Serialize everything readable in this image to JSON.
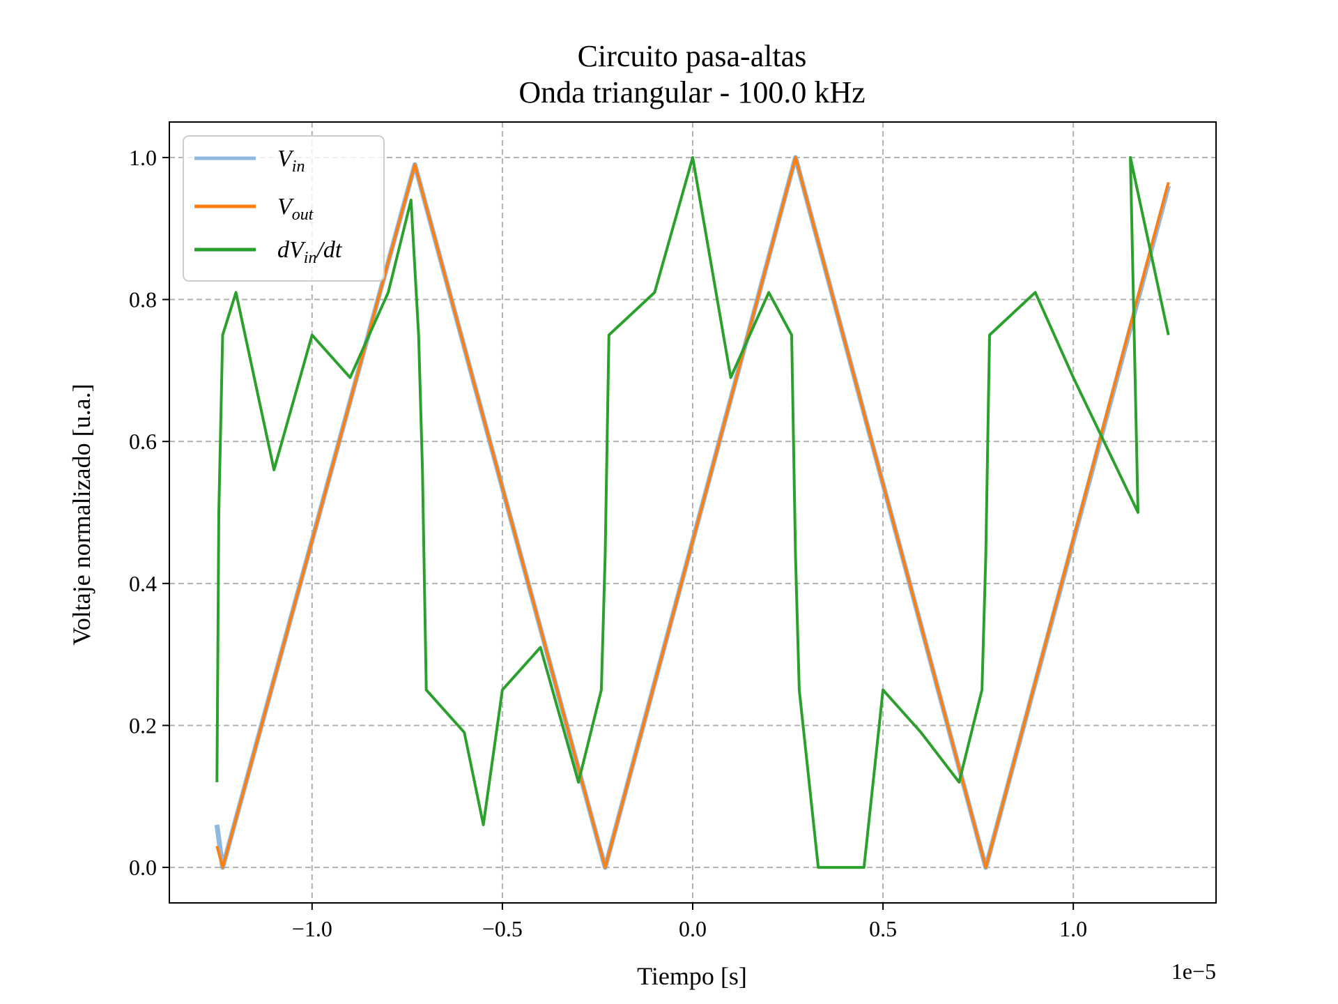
{
  "chart_data": {
    "type": "line",
    "title": "Circuito pasa-altas",
    "subtitle": "Onda triangular - 100.0 kHz",
    "xlabel": "Tiempo [s]",
    "ylabel": "Voltaje normalizado [u.a.]",
    "x_offset_label": "1e−5",
    "xlim": [
      -1.375,
      1.375
    ],
    "ylim": [
      -0.05,
      1.05
    ],
    "x_ticks": [
      -1.0,
      -0.5,
      0.0,
      0.5,
      1.0
    ],
    "x_tick_labels": [
      "−1.0",
      "−0.5",
      "0.0",
      "0.5",
      "1.0"
    ],
    "y_ticks": [
      0.0,
      0.2,
      0.4,
      0.6,
      0.8,
      1.0
    ],
    "y_tick_labels": [
      "0.0",
      "0.2",
      "0.4",
      "0.6",
      "0.8",
      "1.0"
    ],
    "grid": true,
    "legend_position": "top-left",
    "series": [
      {
        "name": "V_in",
        "color": "#8fb8de",
        "points": [
          [
            -1.25,
            0.06
          ],
          [
            -1.235,
            0.0
          ],
          [
            -0.73,
            0.99
          ],
          [
            -0.23,
            0.0
          ],
          [
            0.27,
            1.0
          ],
          [
            0.77,
            0.0
          ],
          [
            1.25,
            0.96
          ]
        ]
      },
      {
        "name": "V_out",
        "color": "#ff7f0e",
        "points": [
          [
            -1.25,
            0.03
          ],
          [
            -1.235,
            0.0
          ],
          [
            -0.73,
            0.99
          ],
          [
            -0.23,
            0.0
          ],
          [
            0.27,
            1.0
          ],
          [
            0.77,
            0.0
          ],
          [
            1.25,
            0.965
          ]
        ]
      },
      {
        "name": "dV_in/dt",
        "color": "#2ca02c",
        "points": [
          [
            -1.25,
            0.12
          ],
          [
            -1.245,
            0.5
          ],
          [
            -1.235,
            0.75
          ],
          [
            -1.2,
            0.81
          ],
          [
            -1.1,
            0.56
          ],
          [
            -1.0,
            0.75
          ],
          [
            -0.9,
            0.69
          ],
          [
            -0.8,
            0.81
          ],
          [
            -0.74,
            0.94
          ],
          [
            -0.72,
            0.75
          ],
          [
            -0.71,
            0.56
          ],
          [
            -0.7,
            0.25
          ],
          [
            -0.6,
            0.19
          ],
          [
            -0.55,
            0.06
          ],
          [
            -0.5,
            0.25
          ],
          [
            -0.4,
            0.31
          ],
          [
            -0.3,
            0.12
          ],
          [
            -0.24,
            0.25
          ],
          [
            -0.23,
            0.44
          ],
          [
            -0.22,
            0.75
          ],
          [
            -0.1,
            0.81
          ],
          [
            0.0,
            1.0
          ],
          [
            0.1,
            0.69
          ],
          [
            0.2,
            0.81
          ],
          [
            0.26,
            0.75
          ],
          [
            0.27,
            0.44
          ],
          [
            0.28,
            0.25
          ],
          [
            0.33,
            0.0
          ],
          [
            0.45,
            0.0
          ],
          [
            0.5,
            0.25
          ],
          [
            0.6,
            0.19
          ],
          [
            0.7,
            0.12
          ],
          [
            0.76,
            0.25
          ],
          [
            0.77,
            0.44
          ],
          [
            0.78,
            0.75
          ],
          [
            0.9,
            0.81
          ],
          [
            1.0,
            0.69
          ],
          [
            1.17,
            0.5
          ],
          [
            1.15,
            1.0
          ],
          [
            1.25,
            0.75
          ]
        ]
      }
    ]
  },
  "legend": {
    "items": [
      {
        "label": "V",
        "sub": "in",
        "suffix": ""
      },
      {
        "label": "V",
        "sub": "out",
        "suffix": ""
      },
      {
        "label": "dV",
        "sub": "in",
        "suffix": "/dt"
      }
    ]
  }
}
